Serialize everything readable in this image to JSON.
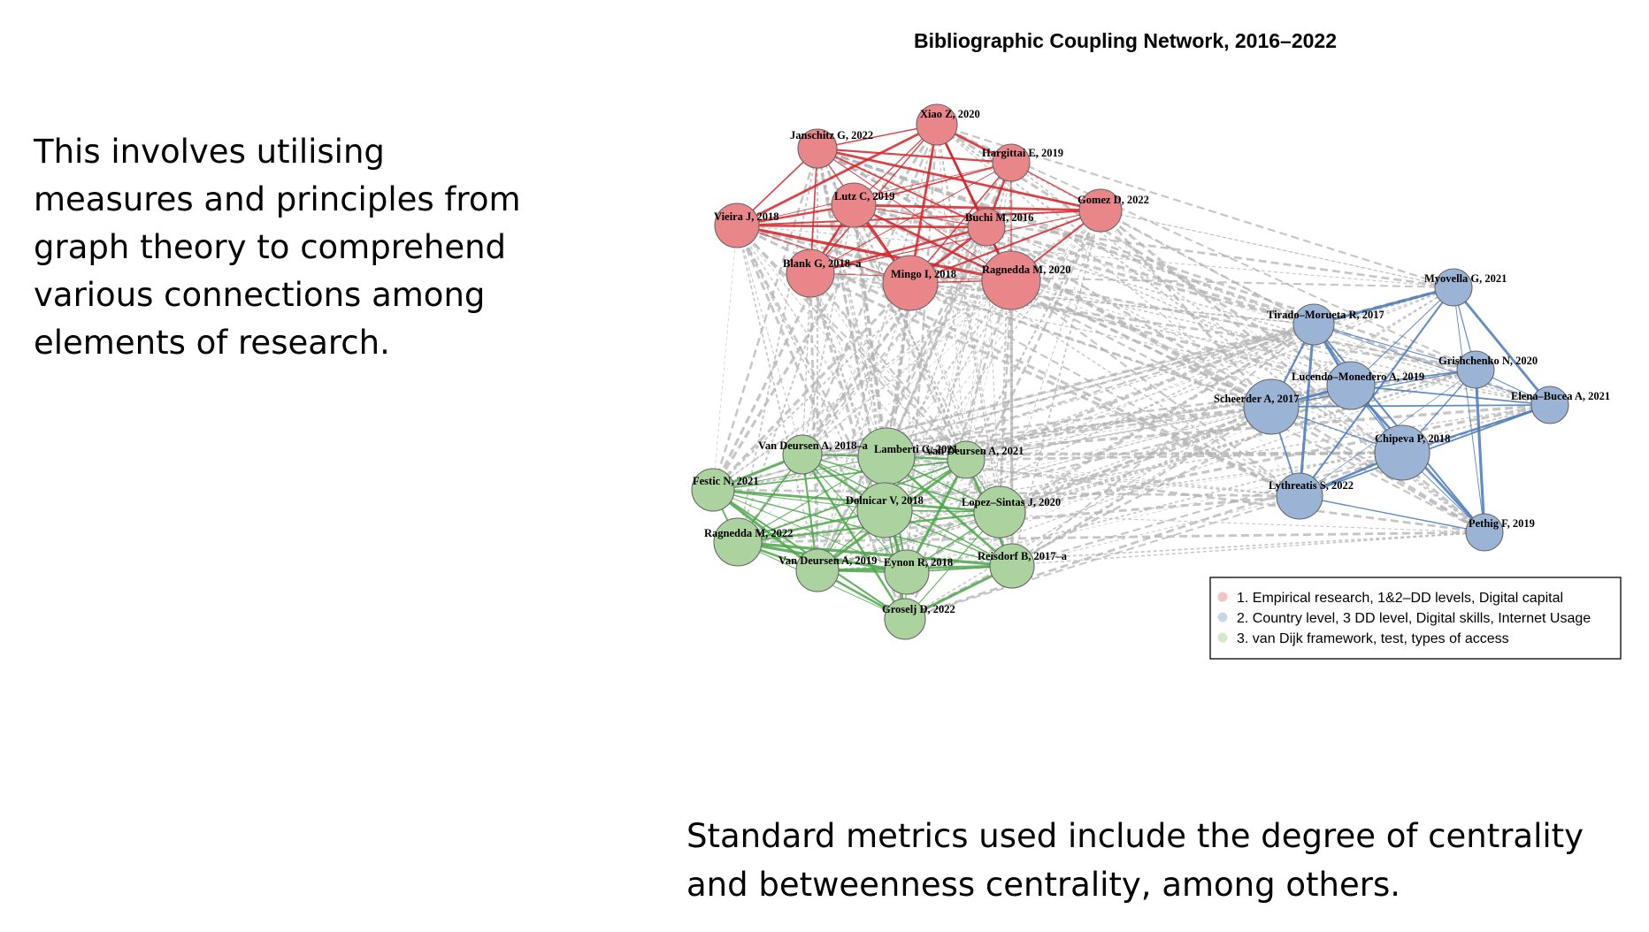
{
  "left_text": "This involves utilising measures and principles from graph theory to comprehend various connections among elements of research.",
  "bottom_text": "Standard metrics used include the degree of centrality and betweenness centrality, among others.",
  "diagram": {
    "title": "Bibliographic Coupling Network, 2016–2022",
    "colors": {
      "cluster1_fill": "#e8868a",
      "cluster1_edge": "#d4262b",
      "cluster2_fill": "#9bb4d6",
      "cluster2_edge": "#4a78b8",
      "cluster3_fill": "#acd39f",
      "cluster3_edge": "#4ea64a",
      "inter_edge": "#b3b3b3",
      "node_stroke": "#666666",
      "legend1": "#f2c4c6",
      "legend2": "#c9d6e8",
      "legend3": "#d4e8cc"
    },
    "legend": [
      "1. Empirical research, 1&2–DD levels, Digital capital",
      "2. Country level, 3 DD level, Digital skills, Internet Usage",
      "3. van Dijk framework, test, types of access"
    ],
    "nodes": [
      {
        "label": "Xiao Z, 2020",
        "cluster": 1
      },
      {
        "label": "Janschitz G, 2022",
        "cluster": 1
      },
      {
        "label": "Hargittai E, 2019",
        "cluster": 1
      },
      {
        "label": "Gomez D, 2022",
        "cluster": 1
      },
      {
        "label": "Lutz C, 2019",
        "cluster": 1
      },
      {
        "label": "Buchi M, 2016",
        "cluster": 1
      },
      {
        "label": "Vieira J, 2018",
        "cluster": 1
      },
      {
        "label": "Blank G, 2018–a",
        "cluster": 1
      },
      {
        "label": "Mingo I, 2018",
        "cluster": 1
      },
      {
        "label": "Ragnedda M, 2020",
        "cluster": 1
      },
      {
        "label": "Myovella G, 2021",
        "cluster": 2
      },
      {
        "label": "Tirado–Morueta R, 2017",
        "cluster": 2
      },
      {
        "label": "Grishchenko N, 2020",
        "cluster": 2
      },
      {
        "label": "Lucendo–Monedero A, 2019",
        "cluster": 2
      },
      {
        "label": "Elena–Bucea A, 2021",
        "cluster": 2
      },
      {
        "label": "Scheerder A, 2017",
        "cluster": 2
      },
      {
        "label": "Chipeva P, 2018",
        "cluster": 2
      },
      {
        "label": "Lythreatis S, 2022",
        "cluster": 2
      },
      {
        "label": "Pethig F, 2019",
        "cluster": 2
      },
      {
        "label": "Van Deursen A, 2018–a",
        "cluster": 3
      },
      {
        "label": "Lamberti G, 2021",
        "cluster": 3
      },
      {
        "label": "Van Deursen A, 2021",
        "cluster": 3
      },
      {
        "label": "Festic N, 2021",
        "cluster": 3
      },
      {
        "label": "Dolnicar V, 2018",
        "cluster": 3
      },
      {
        "label": "Lopez–Sintas J, 2020",
        "cluster": 3
      },
      {
        "label": "Ragnedda M, 2022",
        "cluster": 3
      },
      {
        "label": "Van Deursen A, 2019",
        "cluster": 3
      },
      {
        "label": "Eynon R, 2018",
        "cluster": 3
      },
      {
        "label": "Reisdorf B, 2017–a",
        "cluster": 3
      },
      {
        "label": "Groselj D, 2022",
        "cluster": 3
      }
    ]
  }
}
